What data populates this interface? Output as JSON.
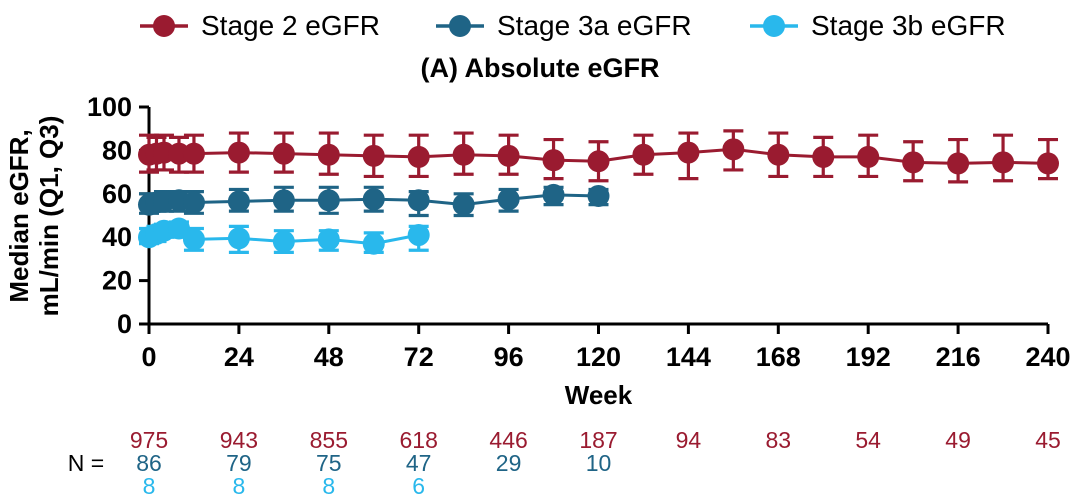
{
  "chart_data": {
    "type": "line",
    "title": "(A) Absolute eGFR",
    "xlabel": "Week",
    "ylabel_lines": [
      "Median eGFR,",
      "mL/min (Q1, Q3)"
    ],
    "xlim": [
      0,
      240
    ],
    "ylim": [
      0,
      100
    ],
    "xticks": [
      0,
      24,
      48,
      72,
      96,
      120,
      144,
      168,
      192,
      216,
      240
    ],
    "yticks": [
      0,
      20,
      40,
      60,
      80,
      100
    ],
    "grid": false,
    "legend_position": "top",
    "error_bars": "Q1-Q3 whiskers",
    "series": [
      {
        "name": "Stage 2 eGFR",
        "color": "#9A1B30",
        "x": [
          0,
          2,
          4,
          8,
          12,
          24,
          36,
          48,
          60,
          72,
          84,
          96,
          108,
          120,
          132,
          144,
          156,
          168,
          180,
          192,
          204,
          216,
          228,
          240
        ],
        "median": [
          78,
          78.5,
          79,
          78.5,
          78.5,
          79,
          78.5,
          78,
          77.5,
          77,
          78,
          77.5,
          75.5,
          75,
          78,
          79,
          80.5,
          78,
          77,
          77,
          74.5,
          74,
          74.5,
          74
        ],
        "q1": [
          70,
          71,
          71,
          70,
          70,
          70,
          70,
          69,
          68,
          68,
          69,
          69,
          67,
          66,
          69,
          67,
          71,
          68,
          68,
          68,
          66,
          65.5,
          66,
          67
        ],
        "q3": [
          87,
          86,
          87,
          86,
          87,
          88,
          88,
          88,
          87,
          87,
          88,
          87,
          85,
          84,
          87,
          88,
          89,
          88,
          86,
          87,
          84,
          85,
          87,
          85
        ]
      },
      {
        "name": "Stage 3a eGFR",
        "color": "#1F6486",
        "x": [
          0,
          2,
          4,
          8,
          12,
          24,
          36,
          48,
          60,
          72,
          84,
          96,
          108,
          120
        ],
        "median": [
          55,
          56,
          56.5,
          57,
          56,
          56.5,
          57,
          57,
          57.5,
          57,
          55,
          57.5,
          59.5,
          59
        ],
        "q1": [
          51,
          52,
          52,
          52,
          51,
          52,
          52,
          51,
          52,
          50,
          50,
          52,
          55,
          55
        ],
        "q3": [
          60,
          60,
          61,
          61,
          61,
          62,
          63,
          63,
          63,
          61,
          60,
          62,
          63,
          62
        ]
      },
      {
        "name": "Stage 3b eGFR",
        "color": "#29B8EC",
        "x": [
          0,
          2,
          4,
          8,
          12,
          24,
          36,
          48,
          60,
          72
        ],
        "median": [
          40,
          41.5,
          43,
          44,
          39,
          39.5,
          38,
          39,
          37,
          41
        ],
        "q1": [
          37,
          38,
          40,
          40,
          34,
          33,
          33,
          34,
          33,
          34
        ],
        "q3": [
          44,
          45,
          46,
          47,
          44,
          45,
          43,
          43,
          42,
          45
        ]
      }
    ],
    "n_table": {
      "label": "N =",
      "weeks": [
        0,
        24,
        48,
        72,
        96,
        120,
        144,
        168,
        192,
        216,
        240
      ],
      "rows": [
        {
          "series": "Stage 2 eGFR",
          "color": "#9A1B30",
          "values": [
            "975",
            "943",
            "855",
            "618",
            "446",
            "187",
            "94",
            "83",
            "54",
            "49",
            "45"
          ]
        },
        {
          "series": "Stage 3a eGFR",
          "color": "#1F6486",
          "values": [
            "86",
            "79",
            "75",
            "47",
            "29",
            "10",
            "",
            "",
            "",
            "",
            ""
          ]
        },
        {
          "series": "Stage 3b eGFR",
          "color": "#29B8EC",
          "values": [
            "8",
            "8",
            "8",
            "6",
            "",
            "",
            "",
            "",
            "",
            "",
            ""
          ]
        }
      ]
    }
  }
}
